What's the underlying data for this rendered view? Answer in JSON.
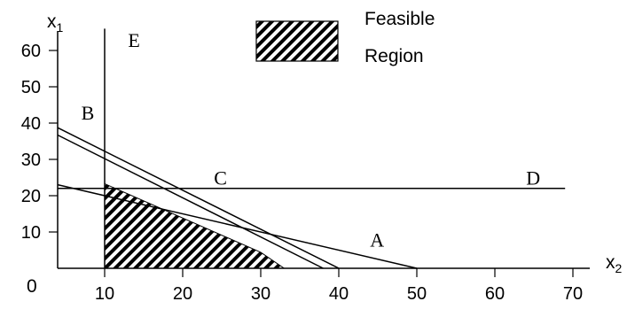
{
  "chart_data": {
    "type": "line",
    "xlabel": "x",
    "xlabel_sub": "2",
    "ylabel": "x",
    "ylabel_sub": "1",
    "origin_label": "0",
    "x_ticks": [
      10,
      20,
      30,
      40,
      50,
      60,
      70
    ],
    "y_ticks": [
      10,
      20,
      30,
      40,
      50,
      60
    ],
    "xlim": [
      0,
      72
    ],
    "ylim": [
      0,
      68
    ],
    "lines": [
      {
        "label": "A",
        "points": [
          [
            0,
            25
          ],
          [
            50,
            0
          ]
        ],
        "label_at": [
          44,
          6
        ]
      },
      {
        "label": "B",
        "points": [
          [
            0,
            43
          ],
          [
            40,
            0
          ]
        ],
        "label_at": [
          7,
          41
        ]
      },
      {
        "label": "",
        "points": [
          [
            0,
            41
          ],
          [
            38,
            0
          ]
        ]
      },
      {
        "label": "C",
        "points": [
          [
            0,
            22
          ],
          [
            69,
            22
          ]
        ],
        "label_at": [
          24,
          23
        ]
      },
      {
        "label": "D",
        "points": [
          [
            0,
            22
          ],
          [
            69,
            22
          ]
        ],
        "label_at": [
          64,
          23
        ]
      },
      {
        "label": "E",
        "points": [
          [
            10,
            0
          ],
          [
            10,
            66
          ]
        ],
        "label_at": [
          13,
          61
        ]
      },
      {
        "label": "",
        "points": [
          [
            10,
            0
          ],
          [
            10,
            0
          ]
        ]
      }
    ],
    "feasible_region": [
      [
        10,
        0
      ],
      [
        10,
        23.3
      ],
      [
        30,
        4.4
      ],
      [
        33,
        0
      ]
    ],
    "legend": {
      "label_line1": "Feasible",
      "label_line2": "Region",
      "position": "top-center"
    }
  },
  "colors": {
    "ink": "#000000",
    "background": "#ffffff"
  }
}
